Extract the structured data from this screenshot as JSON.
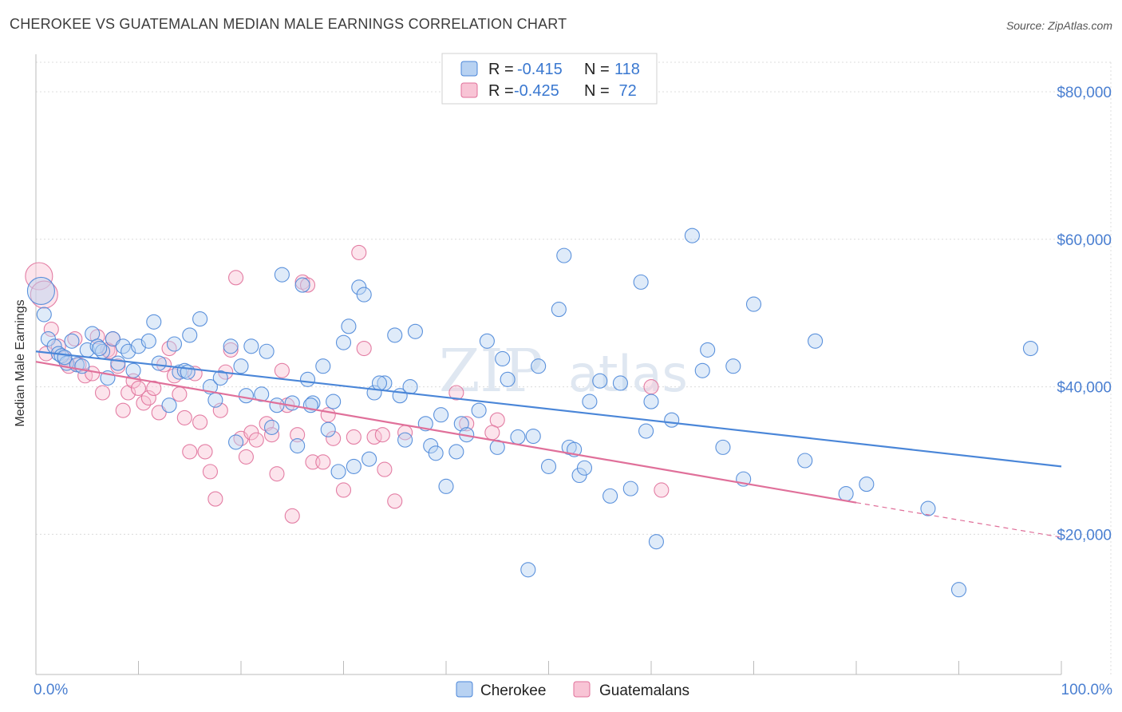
{
  "header": {
    "title": "CHEROKEE VS GUATEMALAN MEDIAN MALE EARNINGS CORRELATION CHART",
    "source": "Source: ZipAtlas.com"
  },
  "watermark": {
    "zip": "ZIP",
    "atlas": "atlas"
  },
  "legend": {
    "rows": [
      {
        "r_label": "R =",
        "r_value": "-0.415",
        "n_label": "N =",
        "n_value": "118",
        "color": "#8fb8ea"
      },
      {
        "r_label": "R =",
        "r_value": "-0.425",
        "n_label": "N =",
        "n_value": " 72",
        "color": "#f4a7c0"
      }
    ]
  },
  "bottom_legend": {
    "series1": "Cherokee",
    "series2": "Guatemalans"
  },
  "chart_data": {
    "type": "scatter",
    "title": "CHEROKEE VS GUATEMALAN MEDIAN MALE EARNINGS CORRELATION CHART",
    "xlabel": "",
    "ylabel": "Median Male Earnings",
    "xlim": [
      0,
      100
    ],
    "ylim": [
      1000,
      84000
    ],
    "x_tick_labels": [
      "0.0%",
      "100.0%"
    ],
    "y_ticks": [
      20000,
      40000,
      60000,
      80000
    ],
    "y_tick_labels": [
      "$20,000",
      "$40,000",
      "$60,000",
      "$80,000"
    ],
    "grid": true,
    "legend_position": "top-center",
    "colors": {
      "cherokee": "#4a86d8",
      "guatemalans": "#e0709a"
    },
    "series": [
      {
        "name": "Cherokee",
        "trend": {
          "x": [
            0,
            100
          ],
          "y": [
            44800,
            29200
          ]
        },
        "points": [
          [
            0.5,
            53000
          ],
          [
            0.8,
            49800
          ],
          [
            1.2,
            46500
          ],
          [
            1.8,
            45500
          ],
          [
            2.2,
            44500
          ],
          [
            2.5,
            44200
          ],
          [
            3,
            43200
          ],
          [
            3.5,
            46200
          ],
          [
            4,
            43000
          ],
          [
            4.5,
            42800
          ],
          [
            5,
            45000
          ],
          [
            5.5,
            47200
          ],
          [
            6,
            45500
          ],
          [
            6.5,
            44800
          ],
          [
            7,
            41200
          ],
          [
            7.5,
            46500
          ],
          [
            8,
            43200
          ],
          [
            8.5,
            45500
          ],
          [
            9,
            44800
          ],
          [
            9.5,
            42200
          ],
          [
            10,
            45500
          ],
          [
            11,
            46200
          ],
          [
            11.5,
            48800
          ],
          [
            12,
            43200
          ],
          [
            13,
            37500
          ],
          [
            13.5,
            45800
          ],
          [
            14,
            42000
          ],
          [
            14.5,
            42200
          ],
          [
            15,
            47000
          ],
          [
            16,
            49200
          ],
          [
            17,
            40000
          ],
          [
            17.5,
            38200
          ],
          [
            18,
            41200
          ],
          [
            19,
            45500
          ],
          [
            19.5,
            32500
          ],
          [
            20,
            42800
          ],
          [
            20.5,
            38800
          ],
          [
            21,
            45500
          ],
          [
            22,
            39000
          ],
          [
            22.5,
            44800
          ],
          [
            23,
            34500
          ],
          [
            23.5,
            37500
          ],
          [
            24,
            55200
          ],
          [
            25,
            37800
          ],
          [
            25.5,
            32000
          ],
          [
            26,
            53800
          ],
          [
            26.5,
            41000
          ],
          [
            27,
            37800
          ],
          [
            28,
            42800
          ],
          [
            28.5,
            34200
          ],
          [
            29,
            38000
          ],
          [
            29.5,
            28500
          ],
          [
            30,
            46000
          ],
          [
            30.5,
            48200
          ],
          [
            31,
            29200
          ],
          [
            31.5,
            53500
          ],
          [
            32,
            52500
          ],
          [
            32.5,
            30200
          ],
          [
            33,
            39200
          ],
          [
            34,
            40500
          ],
          [
            35,
            47000
          ],
          [
            35.5,
            38800
          ],
          [
            36,
            32800
          ],
          [
            36.5,
            40000
          ],
          [
            37,
            47500
          ],
          [
            38,
            35000
          ],
          [
            38.5,
            32000
          ],
          [
            39,
            31000
          ],
          [
            39.5,
            36200
          ],
          [
            40,
            26500
          ],
          [
            41,
            31200
          ],
          [
            41.5,
            35000
          ],
          [
            42,
            33500
          ],
          [
            44,
            46200
          ],
          [
            45,
            31800
          ],
          [
            45.5,
            43800
          ],
          [
            46,
            41000
          ],
          [
            47,
            33200
          ],
          [
            48,
            15200
          ],
          [
            48.5,
            33300
          ],
          [
            49,
            42800
          ],
          [
            50,
            29200
          ],
          [
            51,
            50500
          ],
          [
            51.5,
            57800
          ],
          [
            52,
            31800
          ],
          [
            52.5,
            31500
          ],
          [
            53,
            28000
          ],
          [
            53.5,
            29000
          ],
          [
            54,
            38000
          ],
          [
            55,
            40800
          ],
          [
            56,
            25200
          ],
          [
            57,
            40500
          ],
          [
            58,
            26200
          ],
          [
            59,
            54200
          ],
          [
            59.5,
            34000
          ],
          [
            60,
            38000
          ],
          [
            60.5,
            19000
          ],
          [
            62,
            35500
          ],
          [
            64,
            60500
          ],
          [
            65,
            42200
          ],
          [
            65.5,
            45000
          ],
          [
            67,
            31800
          ],
          [
            68,
            42800
          ],
          [
            69,
            27500
          ],
          [
            70,
            51200
          ],
          [
            75,
            30000
          ],
          [
            76,
            46200
          ],
          [
            79,
            25500
          ],
          [
            81,
            26800
          ],
          [
            87,
            23500
          ],
          [
            90,
            12500
          ],
          [
            97,
            45200
          ],
          [
            2.8,
            44000
          ],
          [
            6.2,
            45200
          ],
          [
            14.8,
            42000
          ],
          [
            26.8,
            37500
          ],
          [
            33.5,
            40500
          ],
          [
            43.2,
            36800
          ]
        ]
      },
      {
        "name": "Guatemalans",
        "trend": {
          "x": [
            0,
            80
          ],
          "y": [
            43400,
            24300
          ]
        },
        "trend_dashed": {
          "x": [
            80,
            100
          ],
          "y": [
            24300,
            19600
          ]
        },
        "points": [
          [
            0.3,
            55000
          ],
          [
            0.8,
            52500
          ],
          [
            1.5,
            47800
          ],
          [
            2.2,
            45500
          ],
          [
            2.8,
            43800
          ],
          [
            3.2,
            42800
          ],
          [
            3.8,
            46500
          ],
          [
            4.2,
            43000
          ],
          [
            4.8,
            41500
          ],
          [
            5.5,
            41800
          ],
          [
            6,
            46800
          ],
          [
            6.5,
            39200
          ],
          [
            7,
            45000
          ],
          [
            7.5,
            46500
          ],
          [
            8,
            42800
          ],
          [
            8.5,
            36800
          ],
          [
            9,
            39200
          ],
          [
            9.5,
            40800
          ],
          [
            10,
            39800
          ],
          [
            10.5,
            37800
          ],
          [
            11,
            38500
          ],
          [
            11.5,
            39800
          ],
          [
            12,
            36500
          ],
          [
            13,
            45200
          ],
          [
            13.5,
            41500
          ],
          [
            14,
            39000
          ],
          [
            14.5,
            35800
          ],
          [
            15,
            31200
          ],
          [
            15.5,
            41800
          ],
          [
            16,
            35200
          ],
          [
            16.5,
            31200
          ],
          [
            17,
            28500
          ],
          [
            17.5,
            24800
          ],
          [
            18,
            36800
          ],
          [
            18.5,
            42000
          ],
          [
            19,
            45000
          ],
          [
            19.5,
            54800
          ],
          [
            20,
            33000
          ],
          [
            20.5,
            30500
          ],
          [
            21,
            33800
          ],
          [
            22.5,
            35000
          ],
          [
            23,
            33500
          ],
          [
            23.5,
            28200
          ],
          [
            24,
            42200
          ],
          [
            24.5,
            37500
          ],
          [
            25,
            22500
          ],
          [
            25.5,
            33500
          ],
          [
            26,
            54200
          ],
          [
            26.5,
            53800
          ],
          [
            27,
            29800
          ],
          [
            28,
            29800
          ],
          [
            28.5,
            36200
          ],
          [
            29,
            33000
          ],
          [
            30,
            26000
          ],
          [
            31,
            33200
          ],
          [
            31.5,
            58200
          ],
          [
            32,
            45200
          ],
          [
            33,
            33200
          ],
          [
            34,
            28800
          ],
          [
            35,
            24500
          ],
          [
            36,
            33800
          ],
          [
            41,
            39200
          ],
          [
            42,
            35000
          ],
          [
            45,
            35500
          ],
          [
            60,
            40000
          ],
          [
            61,
            26000
          ],
          [
            1,
            44500
          ],
          [
            7.2,
            44800
          ],
          [
            12.5,
            43000
          ],
          [
            21.5,
            32800
          ],
          [
            33.8,
            33500
          ],
          [
            44.5,
            33800
          ]
        ]
      }
    ]
  }
}
